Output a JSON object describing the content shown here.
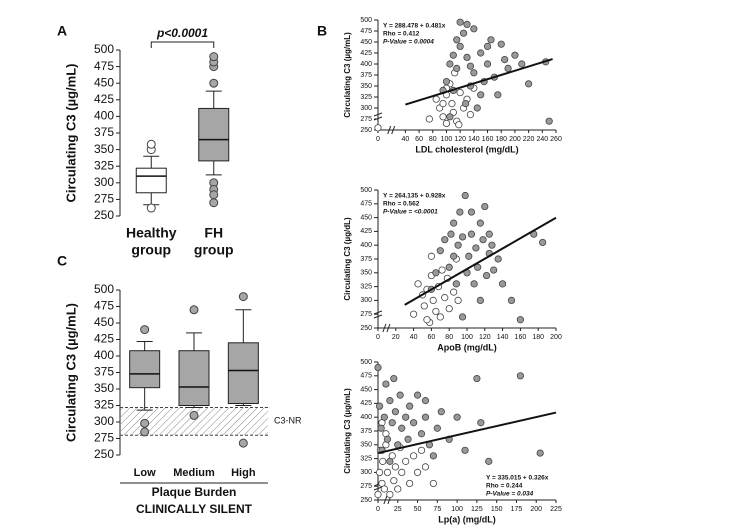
{
  "chart_data": [
    {
      "type": "box",
      "panel": "A",
      "ylabel": "Circulating C3 (µg/mL)",
      "annotation": "p<0.0001",
      "categories": [
        [
          "Healthy",
          "group"
        ],
        [
          "FH",
          "group"
        ]
      ],
      "colors": [
        "#ffffff",
        "#a6a6a6"
      ],
      "boxes": [
        {
          "whislo": 267,
          "q1": 285,
          "med": 310,
          "q3": 322,
          "whishi": 340,
          "fliers": [
            350,
            358,
            262
          ]
        },
        {
          "whislo": 312,
          "q1": 333,
          "med": 365,
          "q3": 412,
          "whishi": 438,
          "fliers": [
            450,
            475,
            482,
            490,
            300,
            290,
            282,
            270
          ]
        }
      ],
      "ylim": [
        250,
        500
      ],
      "yticks": [
        250,
        275,
        300,
        325,
        350,
        375,
        400,
        425,
        450,
        475,
        500
      ]
    },
    {
      "type": "scatter",
      "panel": "B",
      "xlabel": "LDL cholesterol (mg/dL)",
      "ylabel": "Circulating C3 (µg/mL)",
      "annotation": [
        "Y = 288.478 + 0.481x",
        "Rho = 0.412",
        "P-Value = 0.0004"
      ],
      "annotation_corner": "top-left",
      "fit": {
        "intercept": 288.478,
        "slope": 0.481,
        "x": [
          40,
          255
        ]
      },
      "xlim": [
        0,
        260
      ],
      "xticks": [
        0,
        40,
        60,
        80,
        100,
        120,
        140,
        160,
        180,
        200,
        220,
        240,
        260
      ],
      "ylim": [
        250,
        500
      ],
      "yticks": [
        250,
        275,
        300,
        325,
        350,
        375,
        400,
        425,
        450,
        475,
        500
      ],
      "series": [
        {
          "color": "#ffffff",
          "x": [
            0,
            75,
            85,
            90,
            95,
            100,
            100,
            105,
            108,
            110,
            112,
            115,
            120,
            125,
            130,
            135,
            140,
            100,
            95,
            118
          ],
          "values": [
            255,
            275,
            320,
            300,
            280,
            265,
            330,
            355,
            310,
            290,
            380,
            270,
            335,
            300,
            320,
            285,
            345,
            345,
            310,
            262
          ]
        },
        {
          "color": "#999999",
          "x": [
            95,
            100,
            105,
            110,
            115,
            120,
            125,
            128,
            130,
            135,
            140,
            145,
            150,
            155,
            160,
            165,
            170,
            175,
            180,
            185,
            190,
            200,
            210,
            220,
            250,
            245,
            140,
            120,
            130,
            110,
            150,
            160,
            115,
            105,
            135
          ],
          "values": [
            340,
            360,
            400,
            420,
            390,
            440,
            470,
            310,
            415,
            350,
            380,
            300,
            425,
            360,
            400,
            455,
            370,
            330,
            445,
            410,
            390,
            420,
            400,
            355,
            270,
            405,
            480,
            495,
            490,
            340,
            330,
            440,
            455,
            280,
            395
          ]
        }
      ]
    },
    {
      "type": "scatter",
      "xlabel": "ApoB (mg/dL)",
      "ylabel": "Circulating C3 (µg/dL)",
      "annotation": [
        "Y = 264.135 + 0.928x",
        "Rho = 0.562",
        "P-Value = <0.0001"
      ],
      "annotation_corner": "top-left",
      "fit": {
        "intercept": 264.135,
        "slope": 0.928,
        "x": [
          30,
          200
        ]
      },
      "xlim": [
        0,
        200
      ],
      "xticks": [
        0,
        20,
        40,
        60,
        80,
        100,
        120,
        140,
        160,
        180,
        200
      ],
      "ylim": [
        250,
        500
      ],
      "yticks": [
        250,
        275,
        300,
        325,
        350,
        375,
        400,
        425,
        450,
        475,
        500
      ],
      "series": [
        {
          "color": "#ffffff",
          "x": [
            40,
            45,
            50,
            52,
            55,
            58,
            60,
            62,
            65,
            68,
            70,
            72,
            75,
            78,
            80,
            85,
            88,
            60,
            55,
            90
          ],
          "values": [
            275,
            330,
            310,
            290,
            320,
            260,
            345,
            300,
            280,
            325,
            270,
            355,
            305,
            340,
            285,
            315,
            375,
            380,
            265,
            300
          ]
        },
        {
          "color": "#999999",
          "x": [
            60,
            65,
            70,
            75,
            80,
            82,
            85,
            88,
            90,
            92,
            95,
            98,
            100,
            102,
            105,
            108,
            110,
            112,
            115,
            118,
            120,
            122,
            125,
            128,
            130,
            135,
            140,
            150,
            160,
            175,
            185,
            95,
            105,
            115,
            125,
            85
          ],
          "values": [
            320,
            350,
            390,
            410,
            360,
            420,
            440,
            330,
            400,
            460,
            415,
            490,
            350,
            380,
            420,
            330,
            395,
            360,
            440,
            410,
            470,
            345,
            385,
            400,
            355,
            375,
            330,
            300,
            265,
            420,
            405,
            270,
            460,
            300,
            420,
            380
          ]
        }
      ]
    },
    {
      "type": "scatter",
      "xlabel": "Lp(a) (mg/dL)",
      "ylabel": "Circulating C3 (µg/mL)",
      "annotation": [
        "Y = 335.015 + 0.326x",
        "Rho = 0.244",
        "P-Value = 0.034"
      ],
      "annotation_corner": "bottom-right",
      "fit": {
        "intercept": 335.015,
        "slope": 0.326,
        "x": [
          0,
          225
        ]
      },
      "xlim": [
        0,
        225
      ],
      "xticks": [
        0,
        25,
        50,
        75,
        100,
        125,
        150,
        175,
        200,
        225
      ],
      "ylim": [
        250,
        500
      ],
      "yticks": [
        250,
        275,
        300,
        325,
        350,
        375,
        400,
        425,
        450,
        475,
        500
      ],
      "series": [
        {
          "color": "#ffffff",
          "x": [
            0,
            2,
            3,
            5,
            6,
            8,
            10,
            12,
            15,
            18,
            20,
            22,
            25,
            28,
            30,
            35,
            40,
            45,
            50,
            55,
            60,
            70,
            5,
            10
          ],
          "values": [
            260,
            300,
            340,
            280,
            320,
            270,
            350,
            300,
            260,
            330,
            285,
            310,
            270,
            345,
            300,
            320,
            280,
            330,
            300,
            340,
            310,
            280,
            390,
            370
          ]
        },
        {
          "color": "#999999",
          "x": [
            0,
            2,
            4,
            5,
            8,
            10,
            12,
            15,
            18,
            20,
            22,
            25,
            28,
            30,
            35,
            38,
            40,
            45,
            50,
            55,
            60,
            65,
            70,
            75,
            80,
            90,
            100,
            110,
            125,
            130,
            140,
            180,
            205,
            15,
            60
          ],
          "values": [
            490,
            420,
            380,
            340,
            400,
            460,
            360,
            430,
            390,
            470,
            410,
            350,
            440,
            380,
            400,
            360,
            420,
            390,
            440,
            370,
            400,
            350,
            330,
            380,
            410,
            360,
            400,
            340,
            470,
            390,
            320,
            475,
            335,
            320,
            430
          ]
        }
      ]
    },
    {
      "type": "box",
      "panel": "C",
      "ylabel": "Circulating C3 (µg/mL)",
      "xlabel": [
        "Plaque Burden",
        "CLINICALLY SILENT"
      ],
      "categories": [
        [
          "Low"
        ],
        [
          "Medium"
        ],
        [
          "High"
        ]
      ],
      "colors": [
        "#a6a6a6",
        "#a6a6a6",
        "#a6a6a6"
      ],
      "band": {
        "range": [
          280,
          322
        ],
        "label": "C3-NR"
      },
      "boxes": [
        {
          "whislo": 318,
          "q1": 352,
          "med": 373,
          "q3": 408,
          "whishi": 422,
          "fliers": [
            440,
            298,
            285
          ]
        },
        {
          "whislo": 322,
          "q1": 325,
          "med": 353,
          "q3": 408,
          "whishi": 435,
          "fliers": [
            470,
            310
          ]
        },
        {
          "whislo": 325,
          "q1": 328,
          "med": 378,
          "q3": 420,
          "whishi": 470,
          "fliers": [
            490,
            268
          ]
        }
      ],
      "ylim": [
        250,
        500
      ],
      "yticks": [
        250,
        275,
        300,
        325,
        350,
        375,
        400,
        425,
        450,
        475,
        500
      ]
    }
  ]
}
